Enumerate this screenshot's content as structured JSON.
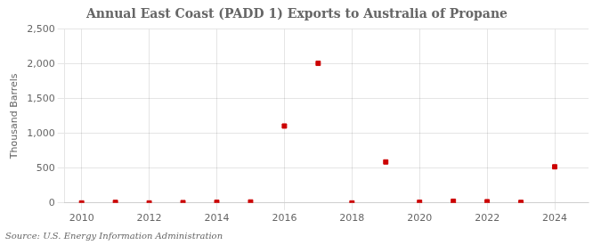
{
  "chart_data": {
    "type": "scatter",
    "title": "Annual East Coast (PADD 1) Exports to Australia of Propane",
    "y_label": "Thousand Barrels",
    "annotation": "Source: U.S. Energy Information Administration",
    "x": [
      2010,
      2011,
      2012,
      2013,
      2014,
      2015,
      2016,
      2017,
      2018,
      2019,
      2020,
      2021,
      2022,
      2023,
      2024
    ],
    "values": [
      0,
      8,
      0,
      5,
      10,
      14,
      1107,
      2009,
      0,
      590,
      10,
      25,
      18,
      8,
      520
    ],
    "color": "#cc0000",
    "marker": "square",
    "xlim": [
      2009.5,
      2025.0
    ],
    "xticks": [
      2010,
      2012,
      2014,
      2016,
      2018,
      2020,
      2022,
      2024
    ],
    "ylim": [
      0,
      2500
    ],
    "yticks": [
      0,
      500,
      {
        "value": 1000,
        "label": "1,000"
      },
      {
        "value": 1500,
        "label": "1,500"
      },
      {
        "value": 2000,
        "label": "2,000"
      },
      {
        "value": 2500,
        "label": "2,500"
      }
    ],
    "grid": true
  }
}
